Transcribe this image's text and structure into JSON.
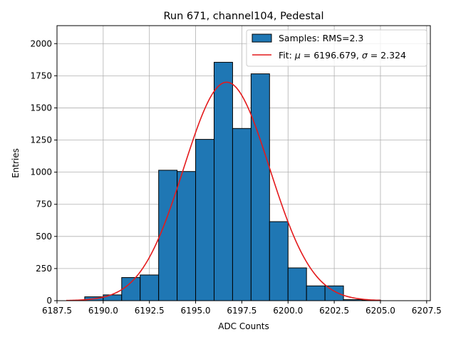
{
  "chart_data": {
    "type": "bar",
    "title": "Run 671, channel104, Pedestal",
    "xlabel": "ADC Counts",
    "ylabel": "Entries",
    "xlim": [
      6187.5,
      6207.7
    ],
    "ylim": [
      0,
      2140
    ],
    "xticks": [
      6187.5,
      6190.0,
      6192.5,
      6195.0,
      6197.5,
      6200.0,
      6202.5,
      6205.0,
      6207.5
    ],
    "xtick_labels": [
      "6187.5",
      "6190.0",
      "6192.5",
      "6195.0",
      "6197.5",
      "6200.0",
      "6202.5",
      "6205.0",
      "6207.5"
    ],
    "yticks": [
      0,
      250,
      500,
      750,
      1000,
      1250,
      1500,
      1750,
      2000
    ],
    "ytick_labels": [
      "0",
      "250",
      "500",
      "750",
      "1000",
      "1250",
      "1500",
      "1750",
      "2000"
    ],
    "grid": true,
    "legend_position": "top-right",
    "series": [
      {
        "name": "Samples: RMS=2.3",
        "type": "histogram",
        "color": "#1f77b4",
        "bins": [
          {
            "x0": 6189.0,
            "x1": 6190.0,
            "value": 30
          },
          {
            "x0": 6190.0,
            "x1": 6191.0,
            "value": 45
          },
          {
            "x0": 6191.0,
            "x1": 6192.0,
            "value": 180
          },
          {
            "x0": 6192.0,
            "x1": 6193.0,
            "value": 200
          },
          {
            "x0": 6193.0,
            "x1": 6194.0,
            "value": 1015
          },
          {
            "x0": 6194.0,
            "x1": 6195.0,
            "value": 1005
          },
          {
            "x0": 6195.0,
            "x1": 6196.0,
            "value": 1255
          },
          {
            "x0": 6196.0,
            "x1": 6197.0,
            "value": 1855
          },
          {
            "x0": 6197.0,
            "x1": 6198.0,
            "value": 1340
          },
          {
            "x0": 6198.0,
            "x1": 6199.0,
            "value": 1765
          },
          {
            "x0": 6199.0,
            "x1": 6200.0,
            "value": 615
          },
          {
            "x0": 6200.0,
            "x1": 6201.0,
            "value": 255
          },
          {
            "x0": 6201.0,
            "x1": 6202.0,
            "value": 115
          },
          {
            "x0": 6202.0,
            "x1": 6203.0,
            "value": 115
          },
          {
            "x0": 6203.0,
            "x1": 6204.0,
            "value": 8
          },
          {
            "x0": 6204.0,
            "x1": 6205.0,
            "value": 5
          }
        ]
      },
      {
        "name_prefix": "Fit: ",
        "name_mu_symbol": "μ",
        "name_mu_value": " = 6196.679, ",
        "name_sigma_symbol": "σ",
        "name_sigma_value": " = 2.324",
        "type": "gaussian-line",
        "color": "#e41a1c",
        "mu": 6196.679,
        "sigma": 2.324,
        "amplitude": 1700,
        "x_range": [
          6188.0,
          6205.0
        ]
      }
    ]
  }
}
